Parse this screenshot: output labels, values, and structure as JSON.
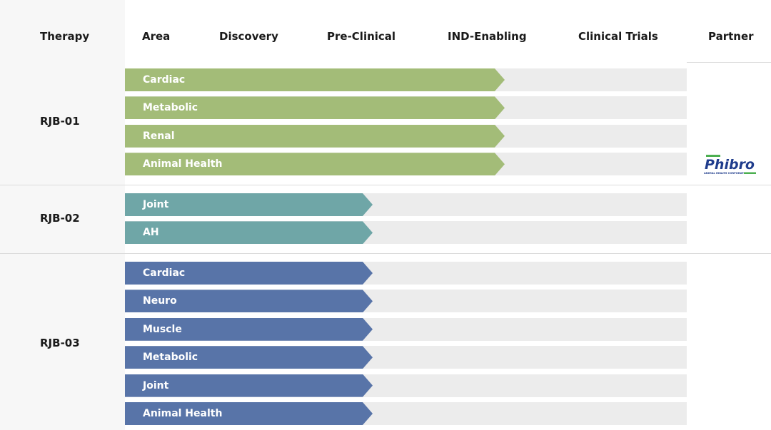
{
  "headers": {
    "therapy": "Therapy",
    "area": "Area",
    "discovery": "Discovery",
    "preclinical": "Pre-Clinical",
    "ind_enabling": "IND-Enabling",
    "clinical_trials": "Clinical Trials",
    "partner": "Partner"
  },
  "partner_logo": {
    "name": "Phibro",
    "tagline": "ANIMAL HEALTH CORPORATION",
    "color": "#1f3c8c",
    "accent": "#4caf50"
  },
  "colors": {
    "rjb01": "#a3bc78",
    "rjb02": "#6fa6a7",
    "rjb03": "#5874a8",
    "track": "#ececec"
  },
  "chart_data": {
    "type": "bar",
    "stages": [
      "Discovery",
      "Pre-Clinical",
      "IND-Enabling",
      "Clinical Trials"
    ],
    "groups": [
      {
        "name": "RJB-01",
        "color": "#a3bc78",
        "partner": "Phibro",
        "items": [
          {
            "area": "Cardiac",
            "progress_stage": "IND-Enabling"
          },
          {
            "area": "Metabolic",
            "progress_stage": "IND-Enabling"
          },
          {
            "area": "Renal",
            "progress_stage": "IND-Enabling"
          },
          {
            "area": "Animal Health",
            "progress_stage": "IND-Enabling"
          }
        ]
      },
      {
        "name": "RJB-02",
        "color": "#6fa6a7",
        "partner": "",
        "items": [
          {
            "area": "Joint",
            "progress_stage": "Pre-Clinical"
          },
          {
            "area": "AH",
            "progress_stage": "Pre-Clinical"
          }
        ]
      },
      {
        "name": "RJB-03",
        "color": "#5874a8",
        "partner": "",
        "items": [
          {
            "area": "Cardiac",
            "progress_stage": "Pre-Clinical"
          },
          {
            "area": "Neuro",
            "progress_stage": "Pre-Clinical"
          },
          {
            "area": "Muscle",
            "progress_stage": "Pre-Clinical"
          },
          {
            "area": "Metabolic",
            "progress_stage": "Pre-Clinical"
          },
          {
            "area": "Joint",
            "progress_stage": "Pre-Clinical"
          },
          {
            "area": "Animal Health",
            "progress_stage": "Pre-Clinical"
          }
        ]
      }
    ]
  }
}
